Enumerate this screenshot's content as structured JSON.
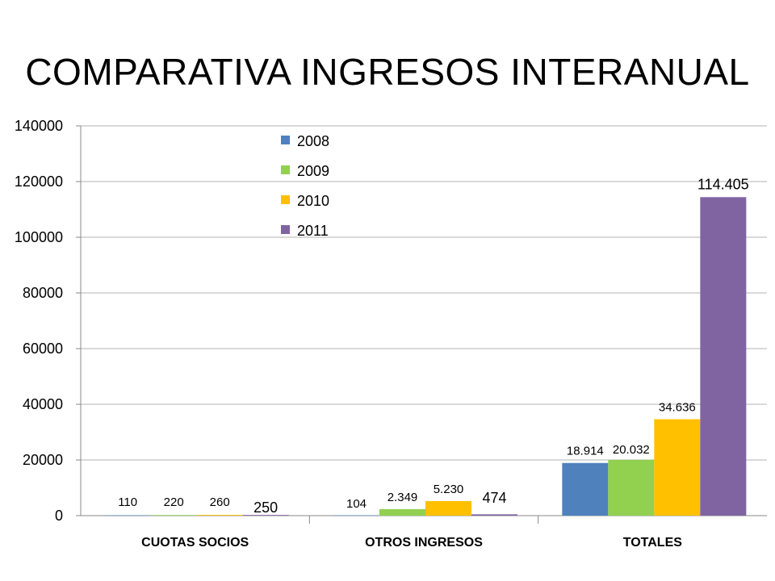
{
  "title": "COMPARATIVA INGRESOS INTERANUAL",
  "chart_data": {
    "type": "bar",
    "title": "COMPARATIVA INGRESOS INTERANUAL",
    "xlabel": "",
    "ylabel": "",
    "ylim": [
      0,
      140000
    ],
    "yticks": [
      "0",
      "20000",
      "40000",
      "60000",
      "80000",
      "100000",
      "120000",
      "140000"
    ],
    "ytick_values": [
      0,
      20000,
      40000,
      60000,
      80000,
      100000,
      120000,
      140000
    ],
    "grid": true,
    "legend_position": "top-center",
    "categories": [
      "CUOTAS SOCIOS",
      "OTROS INGRESOS",
      "TOTALES"
    ],
    "series": [
      {
        "name": "2008",
        "color": "#4F81BD",
        "values": [
          110,
          104,
          18914
        ],
        "labels": [
          "110",
          "104",
          "18.914"
        ]
      },
      {
        "name": "2009",
        "color": "#92D050",
        "values": [
          220,
          2349,
          20032
        ],
        "labels": [
          "220",
          "2.349",
          "20.032"
        ]
      },
      {
        "name": "2010",
        "color": "#FFC000",
        "values": [
          260,
          5230,
          34636
        ],
        "labels": [
          "260",
          "5.230",
          "34.636"
        ]
      },
      {
        "name": "2011",
        "color": "#8064A2",
        "values": [
          250,
          474,
          114405
        ],
        "labels": [
          "250",
          "474",
          "114.405"
        ]
      }
    ]
  }
}
